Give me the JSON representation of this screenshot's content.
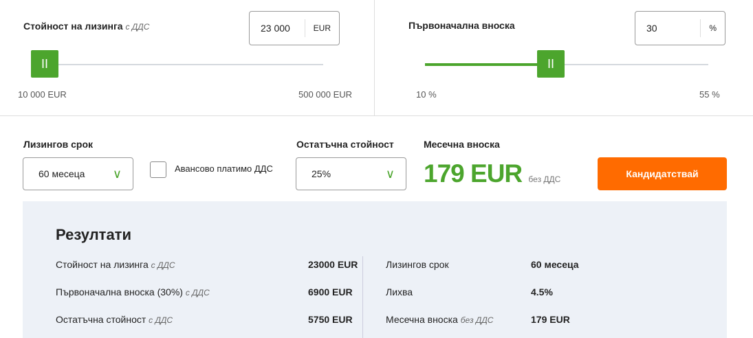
{
  "lease_value": {
    "label": "Стойност на лизинга",
    "hint": "с ДДС",
    "value": "23 000",
    "unit": "EUR",
    "min_label": "10 000 EUR",
    "max_label": "500 000 EUR",
    "slider_fraction": 0.027
  },
  "down_payment": {
    "label": "Първоначална вноска",
    "value": "30",
    "unit": "%",
    "min_label": "10 %",
    "max_label": "55 %",
    "slider_fraction": 0.444
  },
  "term": {
    "label": "Лизингов срок",
    "value": "60 месеца"
  },
  "vat_checkbox": {
    "label": "Авансово платимо ДДС",
    "checked": false
  },
  "residual": {
    "label": "Остатъчна стойност",
    "value": "25%"
  },
  "monthly": {
    "label": "Месечна вноска",
    "value": "179",
    "unit": "EUR",
    "hint": "без ДДС"
  },
  "apply_label": "Кандидатствай",
  "colors": {
    "accent": "#4ca52d",
    "button": "#ff6b00"
  },
  "results": {
    "title": "Резултати",
    "left": [
      {
        "label": "Стойност на лизинга",
        "hint": "с ДДС",
        "value": "23000 EUR"
      },
      {
        "label": "Първоначална вноска (30%)",
        "hint": "с ДДС",
        "value": "6900 EUR"
      },
      {
        "label": "Остатъчна стойност",
        "hint": "с ДДС",
        "value": "5750 EUR"
      }
    ],
    "right": [
      {
        "label": "Лизингов срок",
        "hint": "",
        "value": "60 месеца"
      },
      {
        "label": "Лихва",
        "hint": "",
        "value": "4.5%"
      },
      {
        "label": "Месечна вноска",
        "hint": "без ДДС",
        "value": "179 EUR"
      }
    ]
  }
}
